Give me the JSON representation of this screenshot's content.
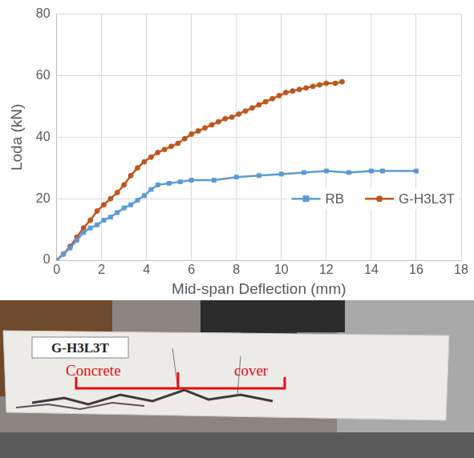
{
  "chart_data": {
    "type": "line",
    "x_label": "Mid-span Deflection (mm)",
    "y_label": "Loda (kN)",
    "xlim": [
      0,
      18
    ],
    "xticks": [
      0,
      2,
      4,
      6,
      8,
      10,
      12,
      14,
      16,
      18
    ],
    "ylim": [
      0,
      80
    ],
    "yticks": [
      0,
      20,
      40,
      60,
      80
    ],
    "grid": true,
    "legend": "lower right",
    "series": [
      {
        "name": "RB",
        "color": "#5B9BD5",
        "marker": "square",
        "x": [
          0,
          0.3,
          0.6,
          0.9,
          1.2,
          1.5,
          1.8,
          2.1,
          2.4,
          2.7,
          3,
          3.3,
          3.6,
          3.9,
          4.2,
          4.5,
          5,
          5.5,
          6,
          7,
          8,
          9,
          10,
          11,
          12,
          13,
          14,
          14.5,
          16
        ],
        "values": [
          0,
          2,
          4,
          6.5,
          9,
          10.5,
          11.5,
          13,
          14,
          15.5,
          17,
          18,
          19.5,
          21,
          23,
          24.5,
          25,
          25.5,
          26,
          26,
          27,
          27.5,
          28,
          28.5,
          29,
          28.5,
          29,
          29,
          29
        ]
      },
      {
        "name": "G-H3L3T",
        "color": "#C0561E",
        "marker": "circle",
        "x": [
          0,
          0.3,
          0.6,
          0.9,
          1.2,
          1.5,
          1.8,
          2.1,
          2.4,
          2.7,
          3,
          3.3,
          3.6,
          3.9,
          4.2,
          4.5,
          4.8,
          5.1,
          5.4,
          5.7,
          6,
          6.3,
          6.6,
          6.9,
          7.2,
          7.5,
          7.8,
          8.1,
          8.4,
          8.7,
          9,
          9.3,
          9.6,
          9.9,
          10.2,
          10.5,
          10.8,
          11.1,
          11.4,
          11.7,
          12,
          12.4,
          12.7
        ],
        "values": [
          0,
          2,
          4.5,
          7.5,
          10.5,
          13,
          16,
          18,
          20,
          22,
          24.5,
          27.5,
          30,
          32,
          33.5,
          35,
          36,
          37,
          38,
          39.5,
          41,
          42,
          43,
          44,
          45,
          46,
          46.5,
          47.5,
          48.5,
          49.5,
          50.5,
          51.5,
          52.5,
          53.5,
          54.5,
          55,
          55.5,
          56,
          56.5,
          57,
          57.5,
          57.5,
          58
        ]
      }
    ]
  },
  "photo": {
    "specimen_label": "G-H3L3T",
    "annotation": "Concrete cover"
  }
}
